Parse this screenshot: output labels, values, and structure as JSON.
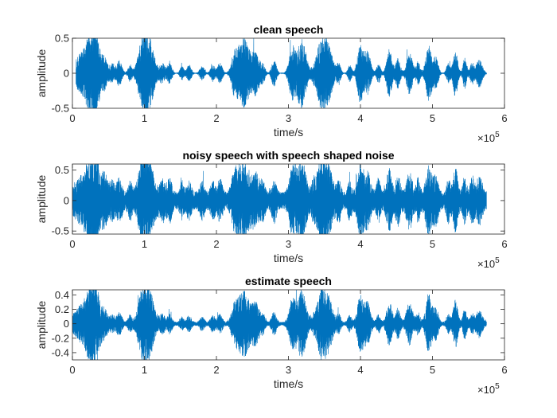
{
  "chart_data": [
    {
      "type": "line",
      "title": "clean speech",
      "xlabel": "time/s",
      "ylabel": "amplitude",
      "xlim": [
        0,
        6
      ],
      "ylim": [
        -0.5,
        0.5
      ],
      "x_ticks": [
        "0",
        "1",
        "2",
        "3",
        "4",
        "5",
        "6"
      ],
      "y_ticks": [
        "0.5",
        "0",
        "-0.5"
      ],
      "x_exponent_base": "×10",
      "x_exponent_power": "5",
      "color": "#0072BD",
      "grid": false,
      "series_extent": [
        0.05,
        5.75
      ],
      "noise_floor": 0.005,
      "bursts": [
        [
          0.2,
          0.28,
          0.35
        ],
        [
          0.3,
          0.12,
          0.5
        ],
        [
          0.45,
          0.07,
          0.15
        ],
        [
          0.55,
          0.06,
          0.12
        ],
        [
          0.65,
          0.07,
          0.18
        ],
        [
          0.8,
          0.05,
          0.12
        ],
        [
          0.98,
          0.12,
          0.5
        ],
        [
          1.08,
          0.12,
          0.38
        ],
        [
          1.25,
          0.07,
          0.15
        ],
        [
          1.35,
          0.06,
          0.15
        ],
        [
          1.52,
          0.05,
          0.1
        ],
        [
          1.62,
          0.06,
          0.12
        ],
        [
          1.8,
          0.06,
          0.1
        ],
        [
          1.95,
          0.06,
          0.12
        ],
        [
          2.05,
          0.06,
          0.15
        ],
        [
          2.25,
          0.08,
          0.25
        ],
        [
          2.38,
          0.15,
          0.5
        ],
        [
          2.55,
          0.1,
          0.28
        ],
        [
          2.65,
          0.05,
          0.12
        ],
        [
          2.8,
          0.06,
          0.2
        ],
        [
          3.05,
          0.08,
          0.35
        ],
        [
          3.18,
          0.12,
          0.5
        ],
        [
          3.35,
          0.05,
          0.1
        ],
        [
          3.45,
          0.1,
          0.45
        ],
        [
          3.55,
          0.12,
          0.4
        ],
        [
          3.7,
          0.05,
          0.15
        ],
        [
          3.85,
          0.05,
          0.12
        ],
        [
          4.0,
          0.08,
          0.42
        ],
        [
          4.1,
          0.08,
          0.3
        ],
        [
          4.25,
          0.05,
          0.15
        ],
        [
          4.4,
          0.07,
          0.35
        ],
        [
          4.52,
          0.06,
          0.22
        ],
        [
          4.68,
          0.08,
          0.3
        ],
        [
          4.8,
          0.05,
          0.18
        ],
        [
          4.95,
          0.08,
          0.4
        ],
        [
          5.05,
          0.06,
          0.22
        ],
        [
          5.22,
          0.05,
          0.15
        ],
        [
          5.32,
          0.06,
          0.35
        ],
        [
          5.45,
          0.05,
          0.22
        ],
        [
          5.55,
          0.05,
          0.15
        ],
        [
          5.65,
          0.08,
          0.2
        ]
      ]
    },
    {
      "type": "line",
      "title": "noisy speech with speech shaped noise",
      "xlabel": "time/s",
      "ylabel": "amplitude",
      "xlim": [
        0,
        6
      ],
      "ylim": [
        -0.55,
        0.6
      ],
      "x_ticks": [
        "0",
        "1",
        "2",
        "3",
        "4",
        "5",
        "6"
      ],
      "y_ticks": [
        "0.5",
        "0",
        "-0.5"
      ],
      "x_exponent_base": "×10",
      "x_exponent_power": "5",
      "color": "#0072BD",
      "grid": false,
      "series_extent": [
        0.0,
        5.75
      ],
      "noise_floor": 0.14,
      "bursts": [
        [
          0.2,
          0.28,
          0.35
        ],
        [
          0.3,
          0.12,
          0.55
        ],
        [
          0.45,
          0.07,
          0.25
        ],
        [
          0.55,
          0.06,
          0.2
        ],
        [
          0.65,
          0.07,
          0.25
        ],
        [
          0.8,
          0.05,
          0.2
        ],
        [
          0.98,
          0.12,
          0.55
        ],
        [
          1.08,
          0.12,
          0.4
        ],
        [
          1.25,
          0.07,
          0.25
        ],
        [
          1.35,
          0.06,
          0.25
        ],
        [
          1.52,
          0.05,
          0.2
        ],
        [
          1.62,
          0.06,
          0.2
        ],
        [
          1.8,
          0.06,
          0.2
        ],
        [
          1.95,
          0.06,
          0.2
        ],
        [
          2.05,
          0.06,
          0.25
        ],
        [
          2.25,
          0.08,
          0.3
        ],
        [
          2.38,
          0.15,
          0.55
        ],
        [
          2.55,
          0.1,
          0.3
        ],
        [
          2.65,
          0.05,
          0.2
        ],
        [
          2.8,
          0.06,
          0.25
        ],
        [
          3.05,
          0.08,
          0.4
        ],
        [
          3.18,
          0.12,
          0.55
        ],
        [
          3.35,
          0.05,
          0.2
        ],
        [
          3.45,
          0.1,
          0.5
        ],
        [
          3.55,
          0.12,
          0.45
        ],
        [
          3.7,
          0.05,
          0.25
        ],
        [
          3.85,
          0.05,
          0.2
        ],
        [
          4.0,
          0.08,
          0.45
        ],
        [
          4.1,
          0.08,
          0.35
        ],
        [
          4.25,
          0.05,
          0.25
        ],
        [
          4.4,
          0.07,
          0.4
        ],
        [
          4.52,
          0.06,
          0.3
        ],
        [
          4.68,
          0.08,
          0.35
        ],
        [
          4.8,
          0.05,
          0.25
        ],
        [
          4.95,
          0.08,
          0.45
        ],
        [
          5.05,
          0.06,
          0.3
        ],
        [
          5.22,
          0.05,
          0.25
        ],
        [
          5.32,
          0.06,
          0.4
        ],
        [
          5.45,
          0.05,
          0.3
        ],
        [
          5.55,
          0.05,
          0.25
        ],
        [
          5.65,
          0.08,
          0.28
        ]
      ]
    },
    {
      "type": "line",
      "title": "estimate speech",
      "xlabel": "time/s",
      "ylabel": "amplitude",
      "xlim": [
        0,
        6
      ],
      "ylim": [
        -0.5,
        0.47
      ],
      "x_ticks": [
        "0",
        "1",
        "2",
        "3",
        "4",
        "5",
        "6"
      ],
      "y_ticks": [
        "0.4",
        "0.2",
        "0",
        "-0.2",
        "-0.4"
      ],
      "x_exponent_base": "×10",
      "x_exponent_power": "5",
      "color": "#0072BD",
      "grid": false,
      "series_extent": [
        0.0,
        5.75
      ],
      "noise_floor": 0.025,
      "bursts": [
        [
          0.2,
          0.28,
          0.3
        ],
        [
          0.3,
          0.12,
          0.45
        ],
        [
          0.45,
          0.07,
          0.12
        ],
        [
          0.55,
          0.06,
          0.1
        ],
        [
          0.65,
          0.07,
          0.15
        ],
        [
          0.8,
          0.05,
          0.1
        ],
        [
          0.98,
          0.12,
          0.45
        ],
        [
          1.08,
          0.12,
          0.35
        ],
        [
          1.25,
          0.07,
          0.12
        ],
        [
          1.35,
          0.06,
          0.12
        ],
        [
          1.52,
          0.05,
          0.08
        ],
        [
          1.62,
          0.06,
          0.1
        ],
        [
          1.8,
          0.06,
          0.08
        ],
        [
          1.95,
          0.06,
          0.1
        ],
        [
          2.05,
          0.06,
          0.12
        ],
        [
          2.25,
          0.08,
          0.2
        ],
        [
          2.38,
          0.15,
          0.45
        ],
        [
          2.55,
          0.1,
          0.25
        ],
        [
          2.65,
          0.05,
          0.1
        ],
        [
          2.8,
          0.06,
          0.15
        ],
        [
          3.05,
          0.08,
          0.3
        ],
        [
          3.18,
          0.12,
          0.45
        ],
        [
          3.35,
          0.05,
          0.08
        ],
        [
          3.45,
          0.1,
          0.4
        ],
        [
          3.55,
          0.12,
          0.35
        ],
        [
          3.7,
          0.05,
          0.12
        ],
        [
          3.85,
          0.05,
          0.1
        ],
        [
          4.0,
          0.08,
          0.38
        ],
        [
          4.1,
          0.08,
          0.28
        ],
        [
          4.25,
          0.05,
          0.12
        ],
        [
          4.4,
          0.07,
          0.3
        ],
        [
          4.52,
          0.06,
          0.2
        ],
        [
          4.68,
          0.08,
          0.28
        ],
        [
          4.8,
          0.05,
          0.15
        ],
        [
          4.95,
          0.08,
          0.38
        ],
        [
          5.05,
          0.06,
          0.2
        ],
        [
          5.22,
          0.05,
          0.12
        ],
        [
          5.32,
          0.06,
          0.32
        ],
        [
          5.45,
          0.05,
          0.2
        ],
        [
          5.55,
          0.05,
          0.12
        ],
        [
          5.65,
          0.08,
          0.18
        ]
      ]
    }
  ]
}
